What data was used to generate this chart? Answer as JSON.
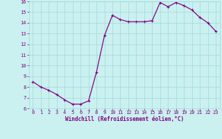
{
  "x": [
    0,
    1,
    2,
    3,
    4,
    5,
    6,
    7,
    8,
    9,
    10,
    11,
    12,
    13,
    14,
    15,
    16,
    17,
    18,
    19,
    20,
    21,
    22,
    23
  ],
  "y": [
    8.5,
    8.0,
    7.7,
    7.3,
    6.8,
    6.4,
    6.4,
    6.7,
    9.4,
    12.8,
    14.7,
    14.3,
    14.1,
    14.1,
    14.1,
    14.2,
    15.9,
    15.5,
    15.9,
    15.6,
    15.2,
    14.5,
    14.0,
    13.2
  ],
  "xlabel": "Windchill (Refroidissement éolien,°C)",
  "ylim": [
    6,
    16
  ],
  "xlim_min": -0.5,
  "xlim_max": 23.5,
  "yticks": [
    6,
    7,
    8,
    9,
    10,
    11,
    12,
    13,
    14,
    15,
    16
  ],
  "xticks": [
    0,
    1,
    2,
    3,
    4,
    5,
    6,
    7,
    8,
    9,
    10,
    11,
    12,
    13,
    14,
    15,
    16,
    17,
    18,
    19,
    20,
    21,
    22,
    23
  ],
  "line_color": "#800080",
  "marker": "+",
  "marker_size": 3,
  "marker_lw": 0.8,
  "line_width": 0.9,
  "bg_color": "#caf0f0",
  "grid_color": "#a0d8d8",
  "tick_label_color": "#800080",
  "xlabel_color": "#800080",
  "tick_fontsize": 5,
  "xlabel_fontsize": 5.5
}
